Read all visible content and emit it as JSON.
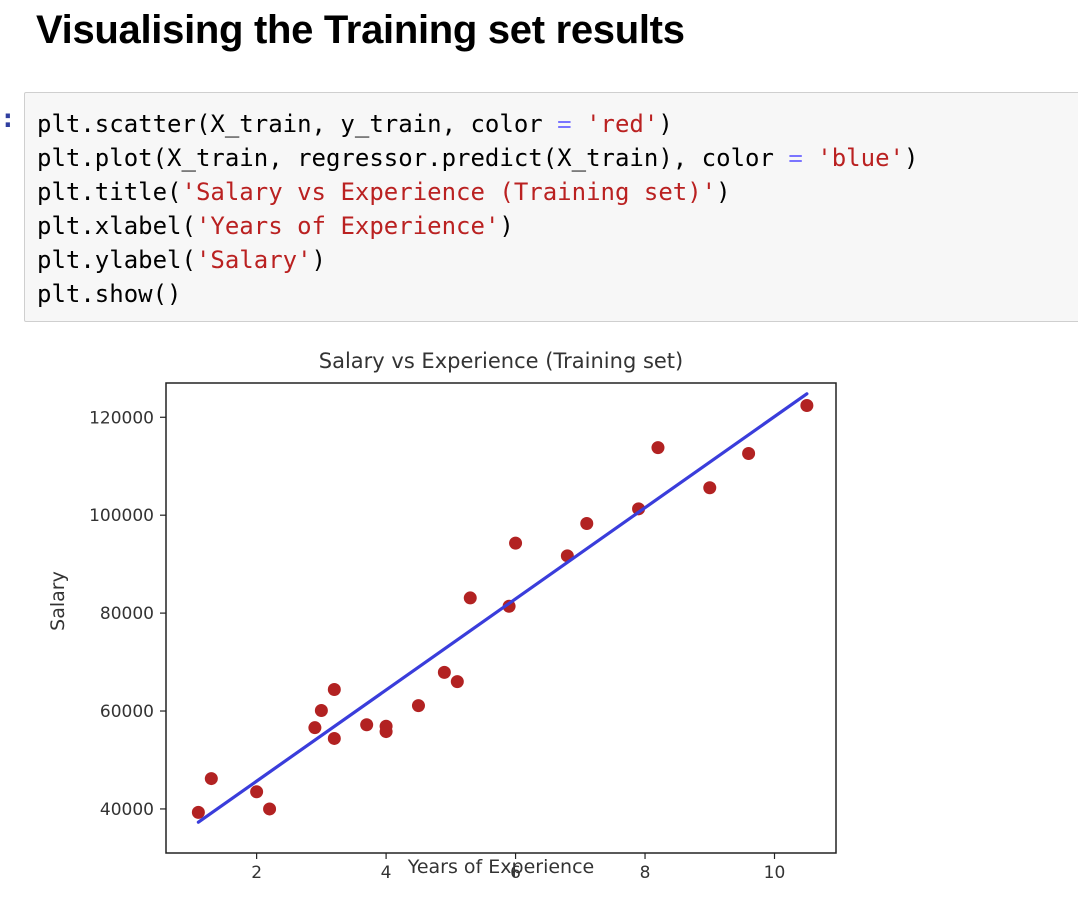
{
  "heading": "Visualising the Training set results",
  "cell": {
    "prompt": ":",
    "lines": [
      [
        {
          "t": "plt.scatter(X_train, y_train, color ",
          "c": ""
        },
        {
          "t": "=",
          "c": "op"
        },
        {
          "t": " ",
          "c": ""
        },
        {
          "t": "'red'",
          "c": "str"
        },
        {
          "t": ")",
          "c": ""
        }
      ],
      [
        {
          "t": "plt.plot(X_train, regressor.predict(X_train), color ",
          "c": ""
        },
        {
          "t": "=",
          "c": "op"
        },
        {
          "t": " ",
          "c": ""
        },
        {
          "t": "'blue'",
          "c": "str"
        },
        {
          "t": ")",
          "c": ""
        }
      ],
      [
        {
          "t": "plt.title(",
          "c": ""
        },
        {
          "t": "'Salary vs Experience (Training set)'",
          "c": "str"
        },
        {
          "t": ")",
          "c": ""
        }
      ],
      [
        {
          "t": "plt.xlabel(",
          "c": ""
        },
        {
          "t": "'Years of Experience'",
          "c": "str"
        },
        {
          "t": ")",
          "c": ""
        }
      ],
      [
        {
          "t": "plt.ylabel(",
          "c": ""
        },
        {
          "t": "'Salary'",
          "c": "str"
        },
        {
          "t": ")",
          "c": ""
        }
      ],
      [
        {
          "t": "plt.show()",
          "c": ""
        }
      ]
    ]
  },
  "chart_data": {
    "type": "scatter",
    "title": "Salary vs Experience (Training set)",
    "xlabel": "Years of Experience",
    "ylabel": "Salary",
    "xlim": [
      0.6,
      10.95
    ],
    "ylim": [
      31000,
      127000
    ],
    "xticks": [
      2,
      4,
      6,
      8,
      10
    ],
    "yticks": [
      40000,
      60000,
      80000,
      100000,
      120000
    ],
    "grid": false,
    "scatter": {
      "color": "#b22222",
      "x": [
        1.1,
        1.3,
        2.0,
        2.2,
        2.9,
        3.0,
        3.2,
        3.2,
        3.7,
        4.0,
        4.0,
        4.5,
        4.9,
        5.1,
        5.3,
        5.9,
        6.0,
        6.8,
        7.1,
        7.9,
        8.2,
        9.0,
        9.6,
        10.5
      ],
      "y": [
        39300,
        46200,
        43500,
        40000,
        56600,
        60100,
        54400,
        64400,
        57200,
        56900,
        55800,
        61100,
        67900,
        66000,
        83100,
        81400,
        94300,
        91700,
        98300,
        101300,
        113800,
        105600,
        112600,
        122400
      ]
    },
    "line": {
      "color": "#3a3ddb",
      "x": [
        1.1,
        10.5
      ],
      "y": [
        37300,
        124800
      ]
    }
  }
}
